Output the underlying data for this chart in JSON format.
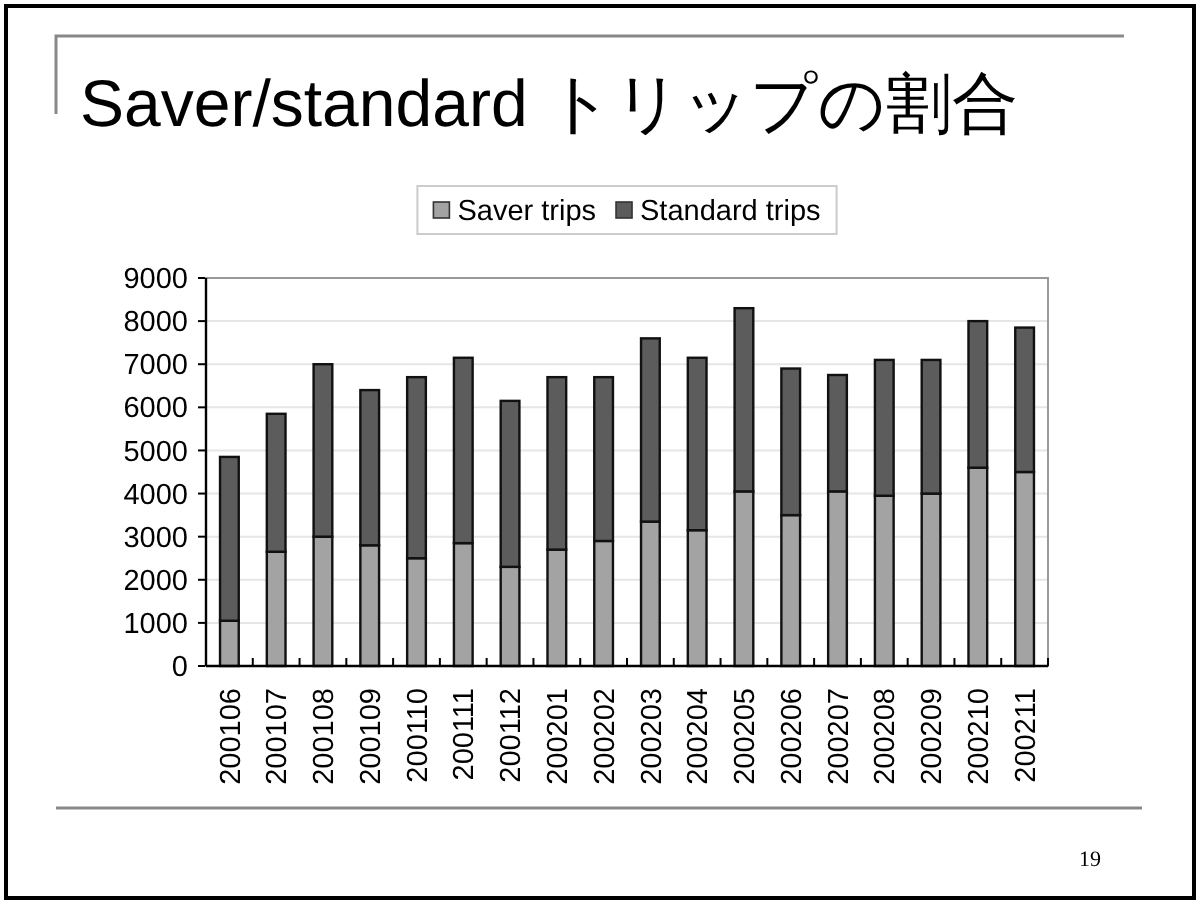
{
  "chart_data": {
    "type": "bar",
    "title": "Saver/standard トリップの割合",
    "categories": [
      "200106",
      "200107",
      "200108",
      "200109",
      "200110",
      "200111",
      "200112",
      "200201",
      "200202",
      "200203",
      "200204",
      "200205",
      "200206",
      "200207",
      "200208",
      "200209",
      "200210",
      "200211"
    ],
    "series": [
      {
        "name": "Saver trips",
        "color": "#a3a3a3",
        "values": [
          1050,
          2650,
          3000,
          2800,
          2500,
          2850,
          2300,
          2700,
          2900,
          3350,
          3150,
          4050,
          3500,
          4050,
          3950,
          4000,
          4600,
          4500
        ]
      },
      {
        "name": "Standard trips",
        "color": "#5c5c5c",
        "values": [
          3800,
          3200,
          4000,
          3600,
          4200,
          4300,
          3850,
          4000,
          3800,
          4250,
          4000,
          4250,
          3400,
          2700,
          3150,
          3100,
          3400,
          3350
        ]
      }
    ],
    "stacked": true,
    "ylim": [
      0,
      9000
    ],
    "yticks": [
      0,
      1000,
      2000,
      3000,
      4000,
      5000,
      6000,
      7000,
      8000,
      9000
    ],
    "grid": "y",
    "legend": "top",
    "annotations": [
      "19"
    ]
  }
}
